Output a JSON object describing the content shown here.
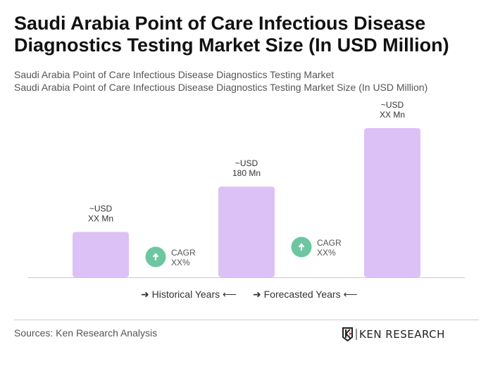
{
  "title": "Saudi Arabia Point of Care Infectious Disease Diagnostics Testing Market Size (In USD Million)",
  "subtitle1": "Saudi Arabia Point of Care Infectious Disease Diagnostics Testing Market",
  "subtitle2": "Saudi Arabia Point of Care Infectious Disease Diagnostics Testing Market Size (In USD Million)",
  "chart_data": {
    "type": "bar",
    "categories": [
      "",
      "",
      ""
    ],
    "values": [
      90,
      180,
      296
    ],
    "data_labels": [
      [
        "~USD",
        "XX Mn"
      ],
      [
        "~USD",
        "180 Mn"
      ],
      [
        "~USD",
        "XX Mn"
      ]
    ],
    "cagr": [
      {
        "label": "CAGR",
        "value": "XX%"
      },
      {
        "label": "CAGR",
        "value": "XX%"
      }
    ],
    "bar_color": "#dcc1f7",
    "cagr_color": "#6cc6a1",
    "grid": false
  },
  "legend": {
    "historical": "Historical Years",
    "forecasted": "Forecasted Years"
  },
  "sources": "Sources: Ken Research Analysis",
  "logo_text": "KEN RESEARCH"
}
